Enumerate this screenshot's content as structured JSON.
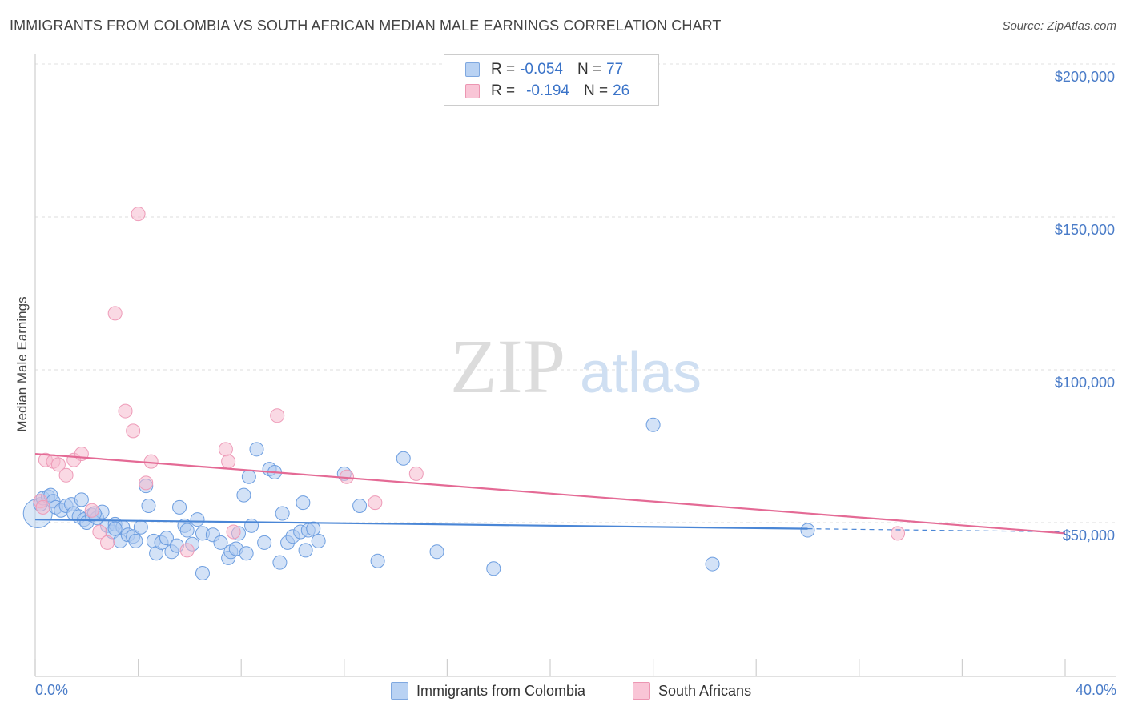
{
  "header": {
    "title": "IMMIGRANTS FROM COLOMBIA VS SOUTH AFRICAN MEDIAN MALE EARNINGS CORRELATION CHART",
    "source": "Source: ZipAtlas.com"
  },
  "watermark": {
    "zip": "ZIP",
    "atlas": "atlas"
  },
  "legend": {
    "rows": [
      {
        "r_label": "R =",
        "r_value": "-0.054",
        "n_label": "N =",
        "n_value": "77"
      },
      {
        "r_label": "R =",
        "r_value": "-0.194",
        "n_label": "N =",
        "n_value": "26"
      }
    ]
  },
  "colors": {
    "blue": "#4a86d6",
    "blue_fill": "#aecbf0",
    "pink": "#e46a95",
    "pink_fill": "#f6b9cd",
    "tick_text": "#4a7cc8"
  },
  "chart_data": {
    "type": "scatter",
    "title": "IMMIGRANTS FROM COLOMBIA VS SOUTH AFRICAN MEDIAN MALE EARNINGS CORRELATION CHART",
    "xlabel": "",
    "ylabel": "Median Male Earnings",
    "xlim": [
      0,
      40
    ],
    "ylim": [
      0,
      205000
    ],
    "x_tick_labels": [
      "0.0%",
      "40.0%"
    ],
    "y_ticks": [
      {
        "value": 50000,
        "label": "$50,000"
      },
      {
        "value": 100000,
        "label": "$100,000"
      },
      {
        "value": 150000,
        "label": "$150,000"
      },
      {
        "value": 200000,
        "label": "$200,000"
      }
    ],
    "grid": true,
    "series": [
      {
        "name": "Immigrants from Colombia",
        "color": "#4a86d6",
        "trend": {
          "x": [
            0,
            30
          ],
          "y": [
            51000,
            48000
          ],
          "dashed_extension_to": 40,
          "y_at_40": 47000
        },
        "points": [
          [
            0.1,
            53000
          ],
          [
            0.2,
            56000
          ],
          [
            0.3,
            58000
          ],
          [
            0.5,
            58500
          ],
          [
            0.6,
            59000
          ],
          [
            0.7,
            57000
          ],
          [
            0.8,
            55000
          ],
          [
            1.0,
            54000
          ],
          [
            1.2,
            55500
          ],
          [
            1.4,
            56000
          ],
          [
            1.5,
            53000
          ],
          [
            1.7,
            52000
          ],
          [
            1.8,
            57500
          ],
          [
            1.9,
            51000
          ],
          [
            2.0,
            50000
          ],
          [
            2.2,
            52500
          ],
          [
            2.4,
            51500
          ],
          [
            2.6,
            53500
          ],
          [
            2.8,
            49000
          ],
          [
            3.0,
            47000
          ],
          [
            3.1,
            49500
          ],
          [
            3.3,
            44000
          ],
          [
            3.4,
            48500
          ],
          [
            3.6,
            46000
          ],
          [
            3.8,
            45500
          ],
          [
            3.9,
            44000
          ],
          [
            4.1,
            48500
          ],
          [
            4.3,
            62000
          ],
          [
            4.4,
            55500
          ],
          [
            4.6,
            44000
          ],
          [
            4.7,
            40000
          ],
          [
            4.9,
            43500
          ],
          [
            5.1,
            45000
          ],
          [
            5.3,
            40500
          ],
          [
            5.5,
            42500
          ],
          [
            5.6,
            55000
          ],
          [
            5.8,
            49000
          ],
          [
            5.9,
            47500
          ],
          [
            6.1,
            43000
          ],
          [
            6.3,
            51000
          ],
          [
            6.5,
            46500
          ],
          [
            6.9,
            46000
          ],
          [
            7.2,
            43500
          ],
          [
            7.5,
            38500
          ],
          [
            7.6,
            40500
          ],
          [
            7.8,
            41500
          ],
          [
            7.9,
            46500
          ],
          [
            8.1,
            59000
          ],
          [
            8.2,
            40000
          ],
          [
            8.3,
            65000
          ],
          [
            8.4,
            49000
          ],
          [
            8.6,
            74000
          ],
          [
            8.9,
            43500
          ],
          [
            9.1,
            67500
          ],
          [
            9.3,
            66500
          ],
          [
            9.5,
            37000
          ],
          [
            9.6,
            53000
          ],
          [
            9.8,
            43500
          ],
          [
            10.0,
            45500
          ],
          [
            10.3,
            47000
          ],
          [
            10.4,
            56500
          ],
          [
            10.5,
            41000
          ],
          [
            10.6,
            47500
          ],
          [
            10.8,
            48000
          ],
          [
            11.0,
            44000
          ],
          [
            12.0,
            66000
          ],
          [
            12.6,
            55500
          ],
          [
            13.3,
            37500
          ],
          [
            14.3,
            71000
          ],
          [
            15.6,
            40500
          ],
          [
            17.8,
            35000
          ],
          [
            24.0,
            82000
          ],
          [
            26.3,
            36500
          ],
          [
            30.0,
            47500
          ],
          [
            6.5,
            33500
          ],
          [
            2.3,
            53000
          ],
          [
            3.1,
            48000
          ]
        ]
      },
      {
        "name": "South Africans",
        "color": "#e46a95",
        "trend": {
          "x": [
            0,
            40
          ],
          "y": [
            72500,
            46500
          ]
        },
        "points": [
          [
            0.2,
            57000
          ],
          [
            0.4,
            70500
          ],
          [
            0.7,
            70000
          ],
          [
            0.9,
            69000
          ],
          [
            1.2,
            65500
          ],
          [
            1.5,
            70500
          ],
          [
            1.8,
            72500
          ],
          [
            2.2,
            54000
          ],
          [
            2.5,
            47000
          ],
          [
            2.8,
            43500
          ],
          [
            3.1,
            118500
          ],
          [
            3.5,
            86500
          ],
          [
            3.8,
            80000
          ],
          [
            4.0,
            151000
          ],
          [
            4.3,
            63000
          ],
          [
            4.5,
            70000
          ],
          [
            5.9,
            41000
          ],
          [
            7.4,
            74000
          ],
          [
            7.5,
            70000
          ],
          [
            7.7,
            47000
          ],
          [
            9.4,
            85000
          ],
          [
            12.1,
            65000
          ],
          [
            13.2,
            56500
          ],
          [
            14.8,
            66000
          ],
          [
            33.5,
            46500
          ],
          [
            0.3,
            55000
          ]
        ]
      }
    ]
  },
  "bottom_legend": {
    "items": [
      "Immigrants from Colombia",
      "South Africans"
    ]
  }
}
